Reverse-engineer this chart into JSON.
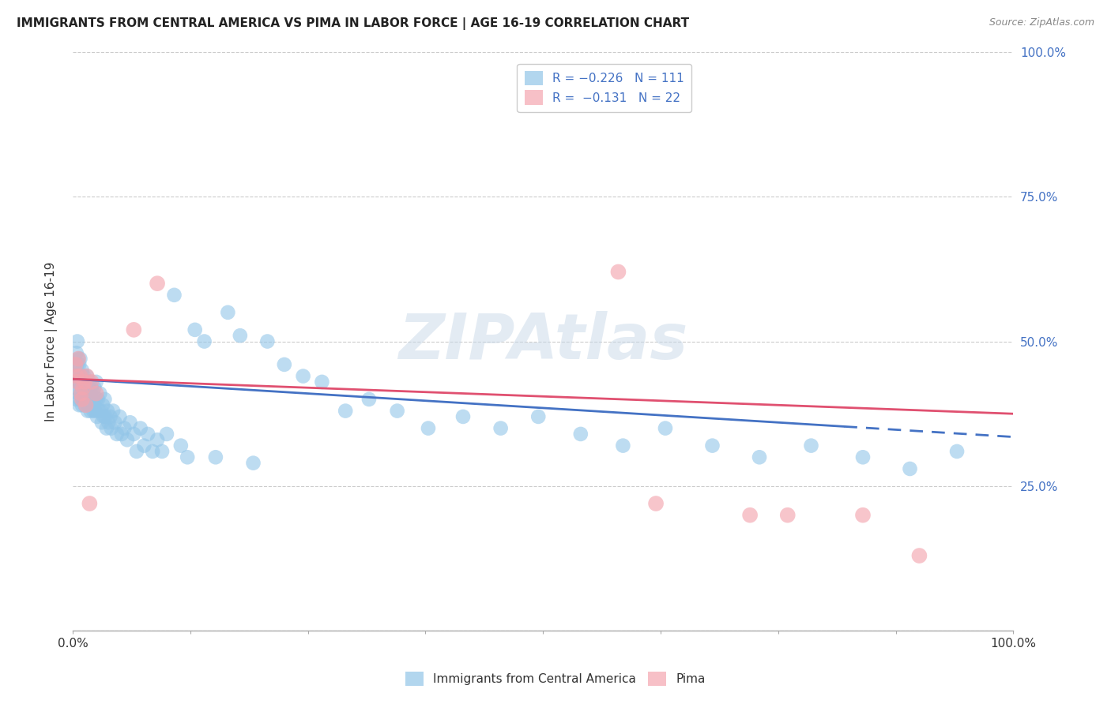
{
  "title": "IMMIGRANTS FROM CENTRAL AMERICA VS PIMA IN LABOR FORCE | AGE 16-19 CORRELATION CHART",
  "source": "Source: ZipAtlas.com",
  "ylabel": "In Labor Force | Age 16-19",
  "xlim": [
    0.0,
    1.0
  ],
  "ylim": [
    0.0,
    1.0
  ],
  "xticks": [
    0.0,
    0.125,
    0.25,
    0.375,
    0.5,
    0.625,
    0.75,
    0.875,
    1.0
  ],
  "xticklabels": [
    "0.0%",
    "",
    "",
    "",
    "",
    "",
    "",
    "",
    "100.0%"
  ],
  "yticks": [
    0.0,
    0.25,
    0.5,
    0.75,
    1.0
  ],
  "yticklabels_right": [
    "",
    "25.0%",
    "50.0%",
    "75.0%",
    "100.0%"
  ],
  "legend_label1": "R = −0.226   N = 111",
  "legend_label2": "R =  −0.131   N = 22",
  "bottom_legend_label1": "Immigrants from Central America",
  "bottom_legend_label2": "Pima",
  "blue_color": "#92C5E8",
  "pink_color": "#F4A6B0",
  "blue_line_color": "#4472C4",
  "pink_line_color": "#E05070",
  "background_color": "#ffffff",
  "watermark": "ZIPAtlas",
  "blue_trend_y_start": 0.435,
  "blue_trend_y_end": 0.335,
  "blue_trend_x_solid_end": 0.82,
  "pink_trend_y_start": 0.435,
  "pink_trend_y_end": 0.375,
  "blue_scatter_x": [
    0.002,
    0.003,
    0.003,
    0.004,
    0.004,
    0.005,
    0.005,
    0.005,
    0.006,
    0.006,
    0.006,
    0.007,
    0.007,
    0.007,
    0.008,
    0.008,
    0.008,
    0.009,
    0.009,
    0.01,
    0.01,
    0.01,
    0.011,
    0.011,
    0.012,
    0.012,
    0.013,
    0.013,
    0.014,
    0.014,
    0.015,
    0.015,
    0.016,
    0.016,
    0.017,
    0.017,
    0.018,
    0.018,
    0.019,
    0.019,
    0.02,
    0.02,
    0.021,
    0.022,
    0.022,
    0.023,
    0.023,
    0.024,
    0.025,
    0.025,
    0.026,
    0.027,
    0.028,
    0.029,
    0.03,
    0.031,
    0.032,
    0.033,
    0.034,
    0.035,
    0.036,
    0.037,
    0.038,
    0.04,
    0.041,
    0.043,
    0.045,
    0.047,
    0.05,
    0.052,
    0.055,
    0.058,
    0.061,
    0.065,
    0.068,
    0.072,
    0.076,
    0.08,
    0.085,
    0.09,
    0.095,
    0.1,
    0.108,
    0.115,
    0.122,
    0.13,
    0.14,
    0.152,
    0.165,
    0.178,
    0.192,
    0.207,
    0.225,
    0.245,
    0.265,
    0.29,
    0.315,
    0.345,
    0.378,
    0.415,
    0.455,
    0.495,
    0.54,
    0.585,
    0.63,
    0.68,
    0.73,
    0.785,
    0.84,
    0.89,
    0.94
  ],
  "blue_scatter_y": [
    0.44,
    0.42,
    0.46,
    0.4,
    0.48,
    0.43,
    0.46,
    0.5,
    0.41,
    0.44,
    0.47,
    0.39,
    0.43,
    0.46,
    0.4,
    0.43,
    0.47,
    0.41,
    0.44,
    0.39,
    0.42,
    0.45,
    0.4,
    0.43,
    0.41,
    0.44,
    0.39,
    0.42,
    0.4,
    0.43,
    0.41,
    0.44,
    0.38,
    0.42,
    0.39,
    0.42,
    0.4,
    0.43,
    0.38,
    0.41,
    0.39,
    0.42,
    0.4,
    0.38,
    0.41,
    0.39,
    0.42,
    0.38,
    0.4,
    0.43,
    0.37,
    0.4,
    0.38,
    0.41,
    0.38,
    0.36,
    0.39,
    0.37,
    0.4,
    0.37,
    0.35,
    0.38,
    0.36,
    0.37,
    0.35,
    0.38,
    0.36,
    0.34,
    0.37,
    0.34,
    0.35,
    0.33,
    0.36,
    0.34,
    0.31,
    0.35,
    0.32,
    0.34,
    0.31,
    0.33,
    0.31,
    0.34,
    0.58,
    0.32,
    0.3,
    0.52,
    0.5,
    0.3,
    0.55,
    0.51,
    0.29,
    0.5,
    0.46,
    0.44,
    0.43,
    0.38,
    0.4,
    0.38,
    0.35,
    0.37,
    0.35,
    0.37,
    0.34,
    0.32,
    0.35,
    0.32,
    0.3,
    0.32,
    0.3,
    0.28,
    0.31
  ],
  "pink_scatter_x": [
    0.003,
    0.004,
    0.005,
    0.006,
    0.008,
    0.009,
    0.01,
    0.011,
    0.013,
    0.014,
    0.015,
    0.018,
    0.02,
    0.025,
    0.065,
    0.09,
    0.58,
    0.62,
    0.72,
    0.76,
    0.84,
    0.9
  ],
  "pink_scatter_y": [
    0.46,
    0.44,
    0.43,
    0.47,
    0.44,
    0.41,
    0.4,
    0.42,
    0.43,
    0.39,
    0.44,
    0.22,
    0.43,
    0.41,
    0.52,
    0.6,
    0.62,
    0.22,
    0.2,
    0.2,
    0.2,
    0.13
  ]
}
